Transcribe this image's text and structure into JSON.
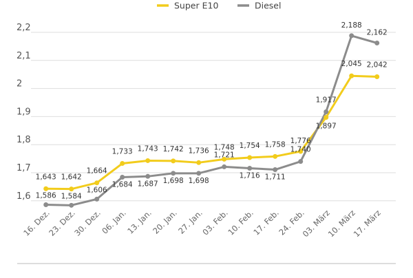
{
  "chart_data": {
    "type": "line",
    "title": "",
    "xlabel": "",
    "ylabel": "",
    "categories": [
      "16. Dez.",
      "23. Dez.",
      "30. Dez.",
      "06. Jan.",
      "13. Jan.",
      "20. Jan.",
      "27. Jan.",
      "03. Feb.",
      "10. Feb.",
      "17. Feb.",
      "24. Feb.",
      "03. März",
      "10. März",
      "17. März"
    ],
    "series": [
      {
        "name": "Super E10",
        "color": "#f2cc1c",
        "values": [
          1.643,
          1.642,
          1.664,
          1.733,
          1.743,
          1.742,
          1.736,
          1.748,
          1.754,
          1.758,
          1.776,
          1.897,
          2.045,
          2.042
        ],
        "labels": [
          "1,643",
          "1,642",
          "1,664",
          "1,733",
          "1,743",
          "1,742",
          "1,736",
          "1,748",
          "1,754",
          "1,758",
          "1,776",
          "1,897",
          "2,045",
          "2,042"
        ]
      },
      {
        "name": "Diesel",
        "color": "#8c8c8c",
        "values": [
          1.586,
          1.584,
          1.606,
          1.684,
          1.687,
          1.698,
          1.698,
          1.721,
          1.716,
          1.711,
          1.74,
          1.917,
          2.188,
          2.162
        ],
        "labels": [
          "1,586",
          "1,584",
          "1,606",
          "1,684",
          "1,687",
          "1,698",
          "1,698",
          "1,721",
          "1,716",
          "1,711",
          "1,740",
          "1,917",
          "2,188",
          "2,162"
        ]
      }
    ],
    "yticks": [
      1.6,
      1.7,
      1.8,
      1.9,
      2.0,
      2.1,
      2.2
    ],
    "ytick_labels": [
      "1,6",
      "1,7",
      "1,8",
      "1,9",
      "2",
      "2,1",
      "2,2"
    ],
    "ylim": [
      1.6,
      2.2
    ],
    "grid": true,
    "legend": "top-center"
  }
}
